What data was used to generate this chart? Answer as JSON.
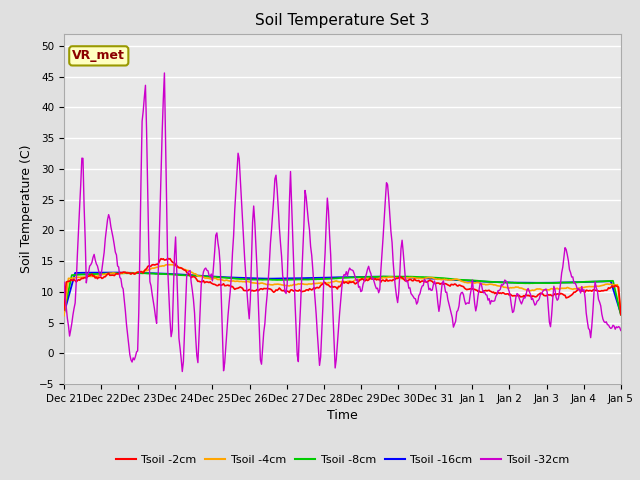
{
  "title": "Soil Temperature Set 3",
  "xlabel": "Time",
  "ylabel": "Soil Temperature (C)",
  "ylim": [
    -5,
    52
  ],
  "yticks": [
    -5,
    0,
    5,
    10,
    15,
    20,
    25,
    30,
    35,
    40,
    45,
    50
  ],
  "annotation": "VR_met",
  "annotation_color": "#8B0000",
  "annotation_bg": "#FFFFC0",
  "annotation_border": "#999900",
  "colors": {
    "Tsoil_2cm": "#FF0000",
    "Tsoil_4cm": "#FFA500",
    "Tsoil_8cm": "#00CC00",
    "Tsoil_16cm": "#0000FF",
    "Tsoil_32cm": "#CC00CC"
  },
  "legend_labels": [
    "Tsoil -2cm",
    "Tsoil -4cm",
    "Tsoil -8cm",
    "Tsoil -16cm",
    "Tsoil -32cm"
  ],
  "fig_bg": "#E0E0E0",
  "plot_bg": "#E8E8E8",
  "grid_color": "white",
  "x_labels": [
    "Dec 21",
    "Dec 22",
    "Dec 23",
    "Dec 24",
    "Dec 25",
    "Dec 26",
    "Dec 27",
    "Dec 28",
    "Dec 29",
    "Dec 30",
    "Dec 31",
    "Jan 1",
    "Jan 2",
    "Jan 3",
    "Jan 4",
    "Jan 5"
  ]
}
